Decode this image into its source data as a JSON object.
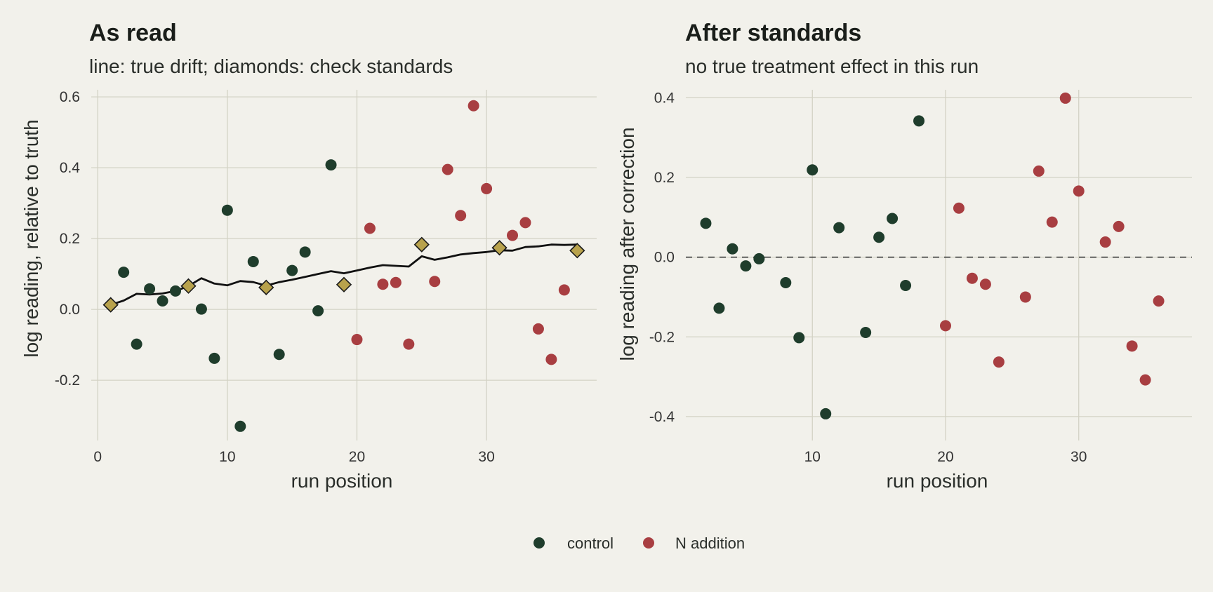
{
  "colors": {
    "control": "#1f3d2c",
    "n_addition": "#a83e41",
    "standard": "#b8a24c",
    "drift_line": "#111111",
    "background": "#f2f1eb",
    "grid": "#d3d2c5"
  },
  "legend": {
    "items": [
      {
        "label": "control",
        "color": "#1f3d2c"
      },
      {
        "label": "N addition",
        "color": "#a83e41"
      }
    ],
    "position": "bottom-center"
  },
  "chart_data": [
    {
      "type": "scatter",
      "title": "As read",
      "subtitle": "line: true drift; diamonds: check standards",
      "xlabel": "run position",
      "ylabel": "log reading, relative to truth",
      "xlim": [
        -0.5,
        38.5
      ],
      "ylim": [
        -0.37,
        0.62
      ],
      "xticks": [
        0,
        10,
        20,
        30
      ],
      "yticks": [
        -0.2,
        0.0,
        0.2,
        0.4,
        0.6
      ],
      "ytick_labels": [
        "-0.2",
        "0.0",
        "0.2",
        "0.4",
        "0.6"
      ],
      "grid": true,
      "series": [
        {
          "name": "control",
          "kind": "points",
          "x": [
            2,
            3,
            4,
            5,
            6,
            8,
            9,
            10,
            11,
            12,
            14,
            15,
            16,
            17,
            18
          ],
          "y": [
            0.105,
            -0.098,
            0.058,
            0.024,
            0.052,
            0.001,
            -0.138,
            0.28,
            -0.33,
            0.135,
            -0.127,
            0.11,
            0.162,
            -0.004,
            0.408
          ]
        },
        {
          "name": "N addition",
          "kind": "points",
          "x": [
            20,
            21,
            22,
            23,
            24,
            26,
            27,
            28,
            29,
            30,
            32,
            33,
            34,
            35,
            36
          ],
          "y": [
            -0.085,
            0.229,
            0.071,
            0.076,
            -0.098,
            0.079,
            0.395,
            0.265,
            0.575,
            0.341,
            0.209,
            0.245,
            -0.055,
            -0.141,
            0.055
          ]
        },
        {
          "name": "check standards",
          "kind": "diamonds",
          "x": [
            1,
            7,
            13,
            19,
            25,
            31,
            37
          ],
          "y": [
            0.013,
            0.066,
            0.062,
            0.07,
            0.183,
            0.174,
            0.166
          ]
        },
        {
          "name": "true drift",
          "kind": "line",
          "x": [
            1,
            2,
            3,
            4,
            5,
            6,
            7,
            8,
            9,
            10,
            11,
            12,
            13,
            14,
            15,
            16,
            17,
            18,
            19,
            20,
            21,
            22,
            23,
            24,
            25,
            26,
            27,
            28,
            29,
            30,
            31,
            32,
            33,
            34,
            35,
            36,
            37
          ],
          "y": [
            0.013,
            0.025,
            0.044,
            0.042,
            0.045,
            0.052,
            0.066,
            0.088,
            0.073,
            0.068,
            0.08,
            0.077,
            0.067,
            0.077,
            0.084,
            0.092,
            0.1,
            0.108,
            0.102,
            0.11,
            0.118,
            0.125,
            0.123,
            0.121,
            0.15,
            0.14,
            0.147,
            0.155,
            0.159,
            0.162,
            0.167,
            0.166,
            0.176,
            0.178,
            0.183,
            0.182,
            0.183
          ]
        }
      ]
    },
    {
      "type": "scatter",
      "title": "After standards",
      "subtitle": "no true treatment effect in this run",
      "xlabel": "run position",
      "ylabel": "log reading after correction",
      "xlim": [
        0.5,
        38.5
      ],
      "ylim": [
        -0.46,
        0.42
      ],
      "xticks": [
        10,
        20,
        30
      ],
      "yticks": [
        -0.4,
        -0.2,
        0.0,
        0.2,
        0.4
      ],
      "ytick_labels": [
        "-0.4",
        "-0.2",
        "0.0",
        "0.2",
        "0.4"
      ],
      "grid": true,
      "reference_line": {
        "y": 0.0,
        "style": "dashed"
      },
      "series": [
        {
          "name": "control",
          "kind": "points",
          "x": [
            2,
            3,
            4,
            5,
            6,
            8,
            9,
            10,
            11,
            12,
            14,
            15,
            16,
            17,
            18
          ],
          "y": [
            0.085,
            -0.128,
            0.021,
            -0.022,
            -0.004,
            -0.064,
            -0.202,
            0.219,
            -0.393,
            0.074,
            -0.189,
            0.05,
            0.097,
            -0.071,
            0.342
          ]
        },
        {
          "name": "N addition",
          "kind": "points",
          "x": [
            20,
            21,
            22,
            23,
            24,
            26,
            27,
            28,
            29,
            30,
            32,
            33,
            34,
            35,
            36
          ],
          "y": [
            -0.172,
            0.123,
            -0.053,
            -0.068,
            -0.263,
            -0.1,
            0.216,
            0.088,
            0.399,
            0.166,
            0.038,
            0.077,
            -0.223,
            -0.308,
            -0.11
          ]
        }
      ]
    }
  ]
}
